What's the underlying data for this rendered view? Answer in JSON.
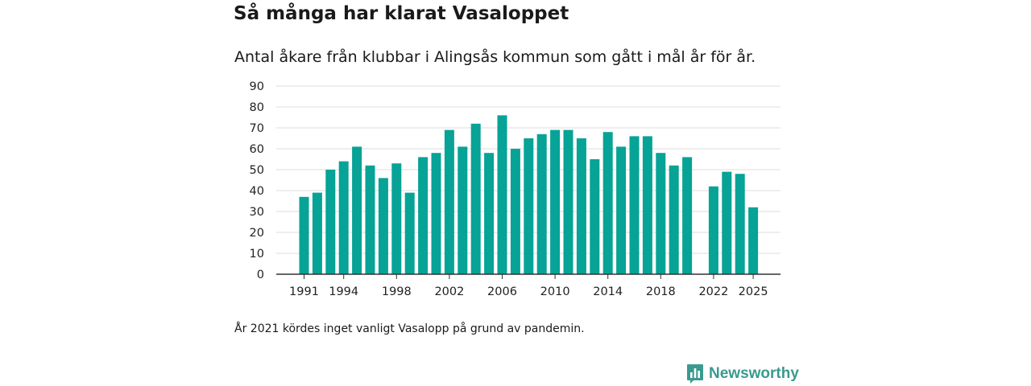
{
  "header": {
    "title": "Så många har klarat Vasaloppet",
    "subtitle": "Antal åkare från klubbar i Alingsås kommun som gått i mål år för år."
  },
  "footnote": "År 2021 kördes inget vanligt Vasalopp på grund av pandemin.",
  "brand": {
    "name": "Newsworthy",
    "color": "#3a9a8f"
  },
  "colors": {
    "bar": "#06a396",
    "grid": "#dcdcdc",
    "axis": "#333333"
  },
  "chart_data": {
    "type": "bar",
    "title": "Så många har klarat Vasaloppet",
    "xlabel": "",
    "ylabel": "",
    "ylim": [
      0,
      90
    ],
    "yticks": [
      0,
      10,
      20,
      30,
      40,
      50,
      60,
      70,
      80,
      90
    ],
    "xtick_labels": [
      1991,
      1994,
      1998,
      2002,
      2006,
      2010,
      2014,
      2018,
      2022,
      2025
    ],
    "grid": true,
    "categories": [
      1991,
      1992,
      1993,
      1994,
      1995,
      1996,
      1997,
      1998,
      1999,
      2000,
      2001,
      2002,
      2003,
      2004,
      2005,
      2006,
      2007,
      2008,
      2009,
      2010,
      2011,
      2012,
      2013,
      2014,
      2015,
      2016,
      2017,
      2018,
      2019,
      2020,
      2021,
      2022,
      2023,
      2024,
      2025
    ],
    "values": [
      37,
      39,
      50,
      54,
      61,
      52,
      46,
      53,
      39,
      56,
      58,
      69,
      61,
      72,
      58,
      76,
      60,
      65,
      67,
      69,
      69,
      65,
      55,
      68,
      61,
      66,
      66,
      58,
      52,
      56,
      null,
      42,
      49,
      48,
      32
    ]
  }
}
